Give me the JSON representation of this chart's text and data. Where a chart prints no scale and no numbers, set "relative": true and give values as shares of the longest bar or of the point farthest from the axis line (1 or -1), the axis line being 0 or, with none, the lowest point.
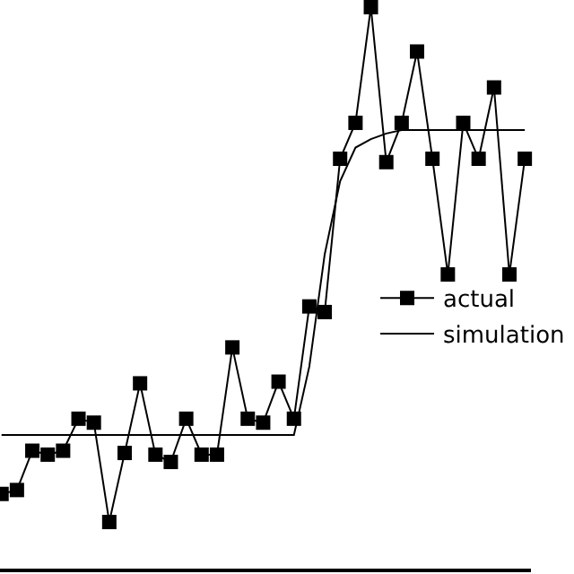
{
  "chart_data": {
    "type": "line",
    "relative": true,
    "legend": "right",
    "marker": "square",
    "line_style": "solid",
    "categories": [
      null,
      null,
      null,
      null,
      null,
      null,
      null,
      null,
      null,
      null,
      null,
      null,
      null,
      null,
      null,
      null,
      null,
      null,
      null,
      null,
      null,
      null,
      null,
      null,
      null,
      null,
      null,
      null,
      null,
      null,
      null,
      null,
      null,
      null,
      null
    ],
    "series": [
      {
        "name": "actual",
        "color": "#000000",
        "values": [
          0.133,
          0.14,
          0.21,
          0.203,
          0.21,
          0.267,
          0.26,
          0.083,
          0.206,
          0.33,
          0.203,
          0.19,
          0.267,
          0.203,
          0.203,
          0.394,
          0.267,
          0.26,
          0.333,
          0.267,
          0.467,
          0.457,
          0.73,
          0.794,
          1,
          0.724,
          0.794,
          0.921,
          0.73,
          0.524,
          0.794,
          0.73,
          0.857,
          0.524,
          0.73
        ]
      },
      {
        "name": "simulation",
        "color": "#000000",
        "marker": "none",
        "values": [
          0.238,
          0.238,
          0.238,
          0.238,
          0.238,
          0.238,
          0.238,
          0.238,
          0.238,
          0.238,
          0.238,
          0.238,
          0.238,
          0.238,
          0.238,
          0.238,
          0.238,
          0.238,
          0.238,
          0.238,
          0.36,
          0.56,
          0.69,
          0.75,
          0.765,
          0.775,
          0.781,
          0.781,
          0.781,
          0.781,
          0.781,
          0.781,
          0.781,
          0.781,
          0.781
        ]
      }
    ]
  }
}
